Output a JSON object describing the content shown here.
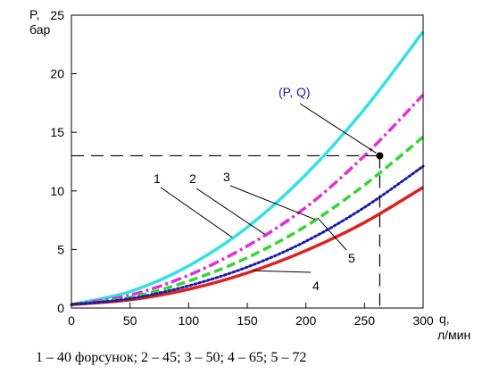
{
  "chart_data": {
    "type": "line",
    "xlabel": "q,",
    "xunit": "л/мин",
    "ylabel": "P,",
    "yunit": "бар",
    "xlim": [
      0,
      300
    ],
    "ylim": [
      0,
      25
    ],
    "x_ticks": [
      "0",
      "50",
      "100",
      "150",
      "200",
      "250",
      "300"
    ],
    "y_ticks": [
      "0",
      "5",
      "10",
      "15",
      "20",
      "25"
    ],
    "grid": false,
    "series": [
      {
        "name": "1",
        "color": "#33e0e8",
        "style": "solid",
        "x": [
          0,
          50,
          100,
          150,
          200,
          250,
          300
        ],
        "y": [
          0.3,
          1.4,
          3.6,
          6.9,
          11.4,
          17.0,
          23.6
        ]
      },
      {
        "name": "2",
        "color": "#e030d8",
        "style": "dashdot",
        "x": [
          0,
          50,
          100,
          150,
          200,
          250,
          300
        ],
        "y": [
          0.3,
          1.1,
          2.8,
          5.3,
          8.6,
          13.0,
          18.2
        ]
      },
      {
        "name": "3",
        "color": "#33d633",
        "style": "dashed",
        "x": [
          0,
          50,
          100,
          150,
          200,
          250,
          300
        ],
        "y": [
          0.3,
          0.9,
          2.3,
          4.3,
          7.0,
          10.5,
          14.6
        ]
      },
      {
        "name": "4",
        "color": "#e02020",
        "style": "solid",
        "x": [
          0,
          50,
          100,
          150,
          200,
          250,
          300
        ],
        "y": [
          0.3,
          0.7,
          1.6,
          3.0,
          4.9,
          7.3,
          10.3
        ]
      },
      {
        "name": "5",
        "color": "#1a1ab0",
        "style": "dotted",
        "x": [
          0,
          50,
          100,
          150,
          200,
          250,
          300
        ],
        "y": [
          0.3,
          0.8,
          1.9,
          3.5,
          5.7,
          8.6,
          12.1
        ]
      }
    ],
    "annotations": [
      {
        "text": "(P, Q)",
        "point": {
          "x": 263,
          "y": 13
        }
      },
      {
        "text": "1",
        "curve": "1"
      },
      {
        "text": "2",
        "curve": "2"
      },
      {
        "text": "3",
        "curve": "3"
      },
      {
        "text": "4",
        "curve": "4"
      },
      {
        "text": "5",
        "curve": "5"
      }
    ]
  },
  "caption": "1 – 40 форсунок; 2 – 45; 3 – 50; 4 – 65; 5 –  72"
}
